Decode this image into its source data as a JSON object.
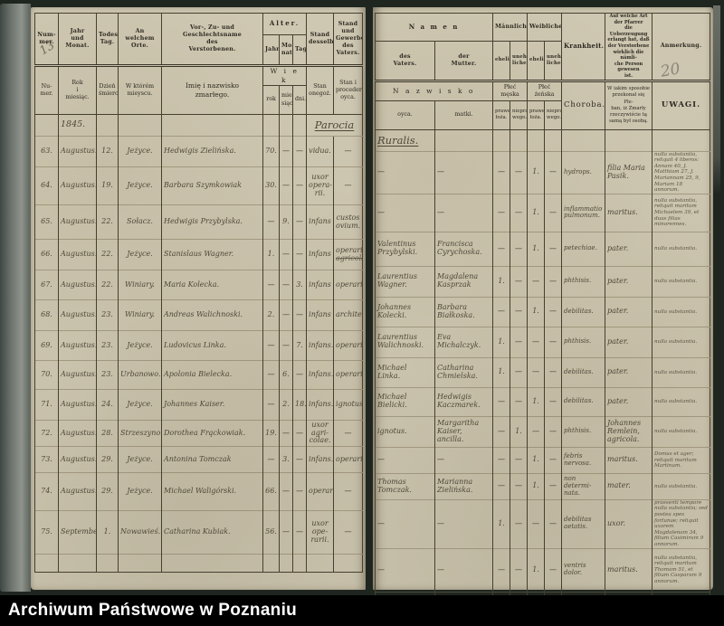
{
  "archive_bar": {
    "label": "Archiwum Państwowe w Poznaniu"
  },
  "pencil": {
    "left_number": "13",
    "right_number": "20"
  },
  "year_line": {
    "year": "1845.",
    "parish_left": "Parocia",
    "parish_right": "Ruralis."
  },
  "header": {
    "german": {
      "nummer": "Num-\nmer.",
      "jahr_monat": "Jahr\nund\nMonat.",
      "todestag": "Todes-\nTag.",
      "ort": "An welchem\nOrte.",
      "name": "Vor-, Zu- und Geschlechtsname\ndes\nVerstorbenen.",
      "alter": "Alter.",
      "alter_jahr": "Jahr.",
      "alter_monat": "Mo-\nnat.",
      "alter_tage": "Tage.",
      "stand": "Stand\ndesselben.",
      "gewerbe": "Stand und\nGewerbe\ndes\nVaters.",
      "namen": "N a m e n",
      "namen_vater": "des\nVaters.",
      "namen_mutter": "der\nMutter.",
      "maennliche": "Männliche",
      "m_ehelich": "eheliche.",
      "m_unehelich": "unehe-\nliche.",
      "weibliche": "Weibliche",
      "w_ehelich": "eheliche.",
      "w_unehelich": "unehe-\nliche.",
      "krankheit": "Krankheit.",
      "ueberzeugung": "Auf welche Art\nder Pfarrer\ndie Ueberzeugung\nerlangt hat, daß\nder Verstorbene\nwirklich die nämli-\nche Person gewesen\nist.",
      "anmerkung": "Anmerkung."
    },
    "polish": {
      "numer": "Nu-\nmer.",
      "rok_miesiac": "Rok\ni\nmiesiąc.",
      "dzien": "Dzień\nśmierci",
      "mieysce": "W którém\nmieyscu.",
      "imie": "Imię i nazwisko\nzmarłego.",
      "wiek": "W i e k",
      "wiek_rok": "rok",
      "wiek_miesiac": "mie-\nsiąc",
      "wiek_dni": "dni.",
      "stan": "Stan\nonegoż.",
      "proceder": "Stan i\nproceder\noyca.",
      "nazwisko": "N a z w i s k o",
      "nazwisko_oyca": "oyca.",
      "nazwisko_matki": "matki.",
      "plec_meska": "Płeć męska",
      "pm_prawego": "prawego\nłoża.",
      "pm_nieprawego": "niepra-\nwego.",
      "plec_zenska": "Płeć żeńska",
      "pz_prawego": "prawego\nłoża.",
      "pz_nieprawego": "niepra-\nwego.",
      "choroba": "Choroba.",
      "sposob": "W iakim sposobie\nprzekonał się Ple-\nban, iż Zmarły\nrzeczywiście tą\nsamą był osobą.",
      "uwagi": "UWAGI."
    }
  },
  "rows": [
    {
      "num": "63.",
      "month": "Augustus.",
      "day": "12.",
      "place": "Jeżyce.",
      "name": "Hedwigis Zielińska.",
      "age_y": "70.",
      "age_m": "—",
      "age_d": "—",
      "status": "vidua.",
      "trade": "—",
      "father": "—",
      "mother": "—",
      "mp": "—",
      "mn": "—",
      "fp": "1.",
      "fn": "—",
      "disease": "hydrops.",
      "proof": "filia Maria\nPasik.",
      "note": "nulla substantia, reliquit 4 liberos: Annam 40, J. Matthiam 27, J. Mariannam 25, 9, Mariam 18 annorum."
    },
    {
      "num": "64.",
      "month": "Augustus.",
      "day": "19.",
      "place": "Jeżyce.",
      "name": "Barbara Szymkowiak",
      "age_y": "30.",
      "age_m": "—",
      "age_d": "—",
      "status": "uxor opera-\nrii.",
      "trade": "—",
      "father": "—",
      "mother": "—",
      "mp": "—",
      "mn": "—",
      "fp": "1.",
      "fn": "—",
      "disease": "inflammatio\npulmonum.",
      "proof": "maritus.",
      "note": "nulla substantia, reliquit maritum Michaelem 39, et duas filias minorennes."
    },
    {
      "num": "65.",
      "month": "Augustus.",
      "day": "22.",
      "place": "Sołacz.",
      "name": "Hedwigis Przybylska.",
      "age_y": "—",
      "age_m": "9.",
      "age_d": "—",
      "status": "infans",
      "trade": "custos ovium.",
      "father": "Valentinus\nPrzybylski.",
      "mother": "Francisca\nCyrychoska.",
      "mp": "—",
      "mn": "—",
      "fp": "1.",
      "fn": "—",
      "disease": "petechiae.",
      "proof": "pater.",
      "note": "nulla substantia."
    },
    {
      "num": "66.",
      "month": "Augustus.",
      "day": "22.",
      "place": "Jeżyce.",
      "name": "Stanislaus Wagner.",
      "age_y": "1.",
      "age_m": "—",
      "age_d": "—",
      "status": "infans",
      "trade": "operarius.",
      "trade_struck": "agricola.",
      "father": "Laurentius\nWagner.",
      "mother": "Magdalena\nKasprzak",
      "mp": "1.",
      "mn": "—",
      "fp": "—",
      "fn": "—",
      "disease": "phthisis.",
      "proof": "pater.",
      "note": "nulla substantia."
    },
    {
      "num": "67.",
      "month": "Augustus.",
      "day": "22.",
      "place": "Winiary.",
      "name": "Maria Kolecka.",
      "age_y": "—",
      "age_m": "—",
      "age_d": "3.",
      "status": "infans",
      "trade": "operarius.",
      "father": "Johannes\nKolecki.",
      "mother": "Barbara\nBiałkoska.",
      "mp": "—",
      "mn": "—",
      "fp": "1.",
      "fn": "—",
      "disease": "debilitas.",
      "proof": "pater.",
      "note": "nulla substantia."
    },
    {
      "num": "68.",
      "month": "Augustus.",
      "day": "23.",
      "place": "Winiary.",
      "name": "Andreas Walichnoski.",
      "age_y": "2.",
      "age_m": "—",
      "age_d": "—",
      "status": "infans",
      "trade": "architector.",
      "father": "Laurentius\nWalichnoski.",
      "mother": "Eva\nMichalczyk.",
      "mp": "1.",
      "mn": "—",
      "fp": "—",
      "fn": "—",
      "disease": "phthisis.",
      "proof": "pater.",
      "note": "nulla substantia."
    },
    {
      "num": "69.",
      "month": "Augustus.",
      "day": "23.",
      "place": "Jeżyce.",
      "name": "Ludovicus Linka.",
      "age_y": "—",
      "age_m": "—",
      "age_d": "7.",
      "status": "infans.",
      "trade": "operarius.",
      "father": "Michael\nLinka.",
      "mother": "Catharina\nChmielska.",
      "mp": "1.",
      "mn": "—",
      "fp": "—",
      "fn": "—",
      "disease": "debilitas.",
      "proof": "pater.",
      "note": "nulla substantia."
    },
    {
      "num": "70.",
      "month": "Augustus.",
      "day": "23.",
      "place": "Urbanowo.",
      "name": "Apolonia Bielecka.",
      "age_y": "—",
      "age_m": "6.",
      "age_d": "—",
      "status": "infans.",
      "trade": "operarius.",
      "father": "Michael\nBielicki.",
      "mother": "Hedwigis\nKaczmarek.",
      "mp": "—",
      "mn": "—",
      "fp": "1.",
      "fn": "—",
      "disease": "debilitas.",
      "proof": "pater.",
      "note": "nulla substantia."
    },
    {
      "num": "71.",
      "month": "Augustus.",
      "day": "24.",
      "place": "Jeżyce.",
      "name": "Johannes Kaiser.",
      "age_y": "—",
      "age_m": "2.",
      "age_d": "18.",
      "status": "infans.",
      "trade": "ignotus.",
      "father": "ignotus.",
      "mother": "Margaritha\nKaiser,\nancilla.",
      "mp": "—",
      "mn": "1.",
      "fp": "—",
      "fn": "—",
      "disease": "phthisis.",
      "proof": "Johannes\nRemlein,\nagricola.",
      "note": "nulla substantia."
    },
    {
      "num": "72.",
      "month": "Augustus.",
      "day": "28.",
      "place": "Strzeszyno.",
      "name": "Dorothea Frąckowiak.",
      "age_y": "19.",
      "age_m": "—",
      "age_d": "—",
      "status": "uxor agri-\ncolae.",
      "trade": "—",
      "father": "—",
      "mother": "—",
      "mp": "—",
      "mn": "—",
      "fp": "1.",
      "fn": "—",
      "disease": "febris nervosa.",
      "proof": "maritus.",
      "note": "Domus et ager; reliquit maritum Martinum."
    },
    {
      "num": "73.",
      "month": "Augustus.",
      "day": "29.",
      "place": "Jeżyce.",
      "name": "Antonina Tomczak",
      "age_y": "—",
      "age_m": "3.",
      "age_d": "—",
      "status": "infans.",
      "trade": "operarius.",
      "father": "Thomas Tomczak.",
      "mother": "Marianna\nZielińska.",
      "mp": "—",
      "mn": "—",
      "fp": "1.",
      "fn": "—",
      "disease": "non determi-\nnata.",
      "proof": "mater.",
      "note": "nulla substantia."
    },
    {
      "num": "74.",
      "month": "Augustus.",
      "day": "29.",
      "place": "Jeżyce.",
      "name": "Michael Waligórski.",
      "age_y": "66.",
      "age_m": "—",
      "age_d": "—",
      "status": "operarius.",
      "trade": "—",
      "father": "—",
      "mother": "—",
      "mp": "1.",
      "mn": "—",
      "fp": "—",
      "fn": "—",
      "disease": "debilitas aetatis.",
      "proof": "uxor.",
      "note": "praesenti tempore nulla substantia; sed postea spes fortunae; reliquit uxorem Magdalenam 34, filium Casimirum 9 annorum."
    },
    {
      "num": "75.",
      "month": "September.",
      "day": "1.",
      "place": "Nowawieś.",
      "name": "Catharina Kubiak.",
      "age_y": "56.",
      "age_m": "—",
      "age_d": "—",
      "status": "uxor ope-\nrarii.",
      "trade": "—",
      "father": "—",
      "mother": "—",
      "mp": "—",
      "mn": "—",
      "fp": "1.",
      "fn": "—",
      "disease": "ventris dolor.",
      "proof": "maritus.",
      "note": "nulla substantia, reliquit maritum Thomam 51, et filium Casparum 9 annorum."
    }
  ]
}
